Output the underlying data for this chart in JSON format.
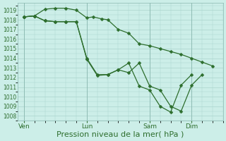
{
  "bg_color": "#cceee8",
  "grid_color": "#aad4cc",
  "line_color": "#2d6e2d",
  "xlabel": "Pression niveau de la mer( hPa )",
  "xlabel_fontsize": 8,
  "ylim": [
    1007.5,
    1019.75
  ],
  "yticks": [
    1008,
    1009,
    1010,
    1011,
    1012,
    1013,
    1014,
    1015,
    1016,
    1017,
    1018,
    1019
  ],
  "xtick_labels": [
    "Ven",
    "Lun",
    "Sam",
    "Dim"
  ],
  "xtick_positions_data": [
    0,
    3,
    6,
    8
  ],
  "xlim": [
    -0.3,
    9.5
  ],
  "vline_x": [
    0,
    3,
    6,
    8
  ],
  "line1": {
    "x": [
      0.0,
      0.5,
      1.0,
      1.5,
      2.0,
      2.5,
      3.0,
      3.3,
      3.7,
      4.0,
      4.5,
      5.0,
      5.5,
      6.0,
      6.5,
      7.0,
      7.5,
      8.0,
      8.5,
      9.0
    ],
    "y": [
      1018.3,
      1018.4,
      1019.1,
      1019.2,
      1019.2,
      1019.0,
      1018.2,
      1018.3,
      1018.1,
      1018.0,
      1017.0,
      1016.6,
      1015.5,
      1015.3,
      1015.0,
      1014.7,
      1014.4,
      1014.0,
      1013.6,
      1013.2
    ]
  },
  "line2": {
    "x": [
      0.0,
      0.5,
      1.0,
      1.5,
      2.0,
      2.5,
      3.0,
      3.5,
      4.0,
      4.5,
      5.0,
      5.5,
      6.0,
      6.5,
      7.0,
      7.5,
      8.0,
      8.5
    ],
    "y": [
      1018.3,
      1018.4,
      1017.9,
      1017.8,
      1017.8,
      1017.8,
      1014.0,
      1012.3,
      1012.3,
      1012.8,
      1012.5,
      1013.5,
      1011.1,
      1010.7,
      1009.0,
      1008.5,
      1011.2,
      1012.3
    ]
  },
  "line3": {
    "x": [
      0.0,
      0.5,
      1.0,
      1.5,
      2.0,
      2.5,
      3.0,
      3.5,
      4.0,
      4.5,
      5.0,
      5.5,
      6.0,
      6.5,
      7.0,
      7.5,
      8.0
    ],
    "y": [
      1018.3,
      1018.4,
      1017.9,
      1017.8,
      1017.8,
      1017.8,
      1013.9,
      1012.2,
      1012.3,
      1012.8,
      1013.5,
      1011.1,
      1010.7,
      1009.0,
      1008.4,
      1011.2,
      1012.3
    ]
  }
}
